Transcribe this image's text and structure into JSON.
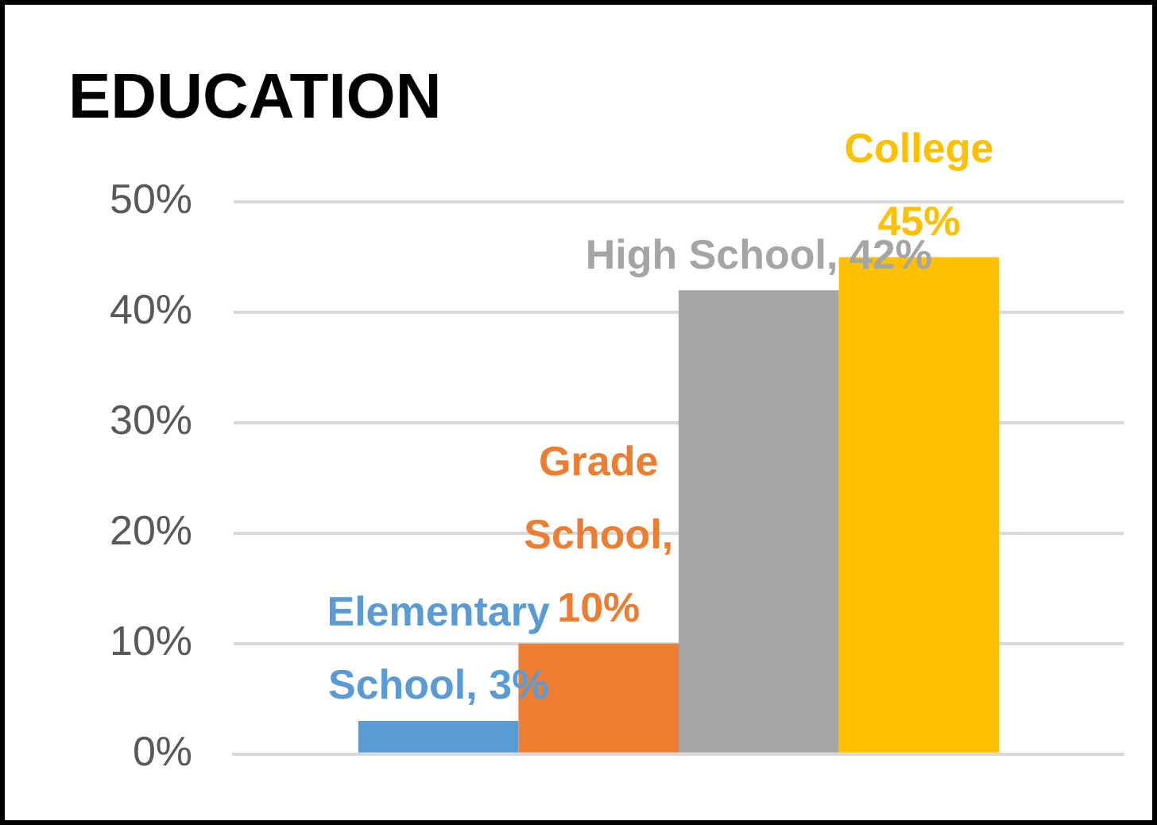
{
  "chart_data": {
    "type": "bar",
    "title": "EDUCATION",
    "categories": [
      null
    ],
    "series": [
      {
        "color": "#5b9bd5",
        "values": [
          3
        ],
        "value_labels": [
          "Elementary\nSchool, 3%"
        ]
      },
      {
        "color": "#ed7d31",
        "values": [
          10
        ],
        "value_labels": [
          "Grade\nSchool,\n10%"
        ]
      },
      {
        "color": "#a5a5a5",
        "values": [
          42
        ],
        "value_labels": [
          "High School, 42%"
        ]
      },
      {
        "color": "#ffc000",
        "values": [
          45
        ],
        "value_labels": [
          "College\n45%"
        ]
      }
    ],
    "ylim": [
      0,
      50
    ],
    "yticks": [
      {
        "value": 0,
        "label": "0%"
      },
      {
        "value": 10,
        "label": "10%"
      },
      {
        "value": 20,
        "label": "20%"
      },
      {
        "value": 30,
        "label": "30%"
      },
      {
        "value": 40,
        "label": "40%"
      },
      {
        "value": 50,
        "label": "50%"
      }
    ],
    "grid": "y",
    "legend": false,
    "tick_labels": "y"
  }
}
